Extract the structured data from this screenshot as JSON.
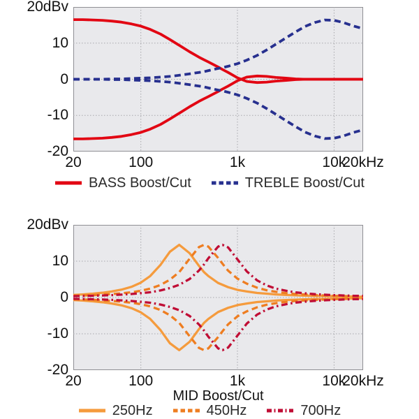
{
  "chart_data": [
    {
      "type": "line",
      "title": "",
      "xlabel": "",
      "ylabel": "dBv",
      "x_scale": "log",
      "xlim_hz": [
        20,
        20000
      ],
      "ylim": [
        -20,
        20
      ],
      "grid": true,
      "legend_position": "bottom",
      "x_hz": [
        20,
        25,
        32,
        40,
        50,
        63,
        80,
        100,
        125,
        160,
        200,
        250,
        320,
        400,
        450,
        500,
        630,
        700,
        800,
        1000,
        1250,
        1600,
        2000,
        2500,
        3200,
        4000,
        5000,
        6300,
        8000,
        10000,
        12500,
        16000,
        20000
      ],
      "x_ticks": [
        {
          "hz": 20,
          "label": "20"
        },
        {
          "hz": 100,
          "label": "100"
        },
        {
          "hz": 1000,
          "label": "1k"
        },
        {
          "hz": 10000,
          "label": "10k"
        },
        {
          "hz": 20000,
          "label": "20kHz"
        }
      ],
      "x_gridlines_hz": [
        100,
        1000,
        10000
      ],
      "y_ticks": [
        {
          "db": 20,
          "label": "20dBv"
        },
        {
          "db": 10,
          "label": "10"
        },
        {
          "db": 0,
          "label": "0"
        },
        {
          "db": -10,
          "label": "-10"
        },
        {
          "db": -20,
          "label": "-20"
        }
      ],
      "y_gridlines_db": [
        10,
        0,
        -10
      ],
      "series": [
        {
          "name": "BASS Boost/Cut",
          "color": "#e20613",
          "style": "solid",
          "mirror": true,
          "values": [
            16.5,
            16.5,
            16.4,
            16.3,
            16.1,
            15.8,
            15.3,
            14.7,
            13.8,
            12.5,
            11.0,
            9.4,
            7.6,
            6.1,
            5.4,
            4.8,
            3.4,
            2.7,
            1.9,
            0.4,
            -0.6,
            -0.9,
            -0.8,
            -0.5,
            -0.3,
            -0.1,
            0,
            0,
            0,
            0,
            0,
            0,
            0
          ]
        },
        {
          "name": "TREBLE Boost/Cut",
          "color": "#27308f",
          "style": "dashed",
          "mirror": true,
          "values": [
            0,
            0,
            0,
            0,
            0.1,
            0.1,
            0.2,
            0.3,
            0.4,
            0.6,
            0.8,
            1.1,
            1.5,
            1.9,
            2.1,
            2.4,
            3.0,
            3.2,
            3.6,
            4.3,
            5.3,
            6.6,
            8.1,
            9.7,
            11.5,
            13.1,
            14.6,
            15.7,
            16.4,
            16.3,
            15.7,
            14.7,
            14.0
          ]
        }
      ]
    },
    {
      "type": "line",
      "title": "",
      "xlabel": "MID Boost/Cut",
      "ylabel": "dBv",
      "x_scale": "log",
      "xlim_hz": [
        20,
        20000
      ],
      "ylim": [
        -20,
        20
      ],
      "grid": true,
      "legend_position": "bottom",
      "x_hz": [
        20,
        25,
        32,
        40,
        50,
        63,
        80,
        100,
        125,
        160,
        200,
        250,
        320,
        400,
        450,
        500,
        630,
        700,
        800,
        1000,
        1250,
        1600,
        2000,
        2500,
        3200,
        4000,
        5000,
        6300,
        8000,
        10000,
        12500,
        16000,
        20000
      ],
      "x_ticks": [
        {
          "hz": 20,
          "label": "20"
        },
        {
          "hz": 100,
          "label": "100"
        },
        {
          "hz": 1000,
          "label": "1k"
        },
        {
          "hz": 10000,
          "label": "10k"
        },
        {
          "hz": 20000,
          "label": "20kHz"
        }
      ],
      "x_gridlines_hz": [
        100,
        1000,
        10000
      ],
      "y_ticks": [
        {
          "db": 20,
          "label": "20dBv"
        },
        {
          "db": 10,
          "label": "10"
        },
        {
          "db": 0,
          "label": "0"
        },
        {
          "db": -10,
          "label": "-10"
        },
        {
          "db": -20,
          "label": "-20"
        }
      ],
      "y_gridlines_db": [
        10,
        0,
        -10
      ],
      "series": [
        {
          "name": "250Hz",
          "color": "#f59b3d",
          "style": "solid",
          "mirror": true,
          "values": [
            0.7,
            0.85,
            1.05,
            1.3,
            1.65,
            2.15,
            2.95,
            4.1,
            5.9,
            9.0,
            12.6,
            14.5,
            12.2,
            8.7,
            7.0,
            5.9,
            4.0,
            3.5,
            2.85,
            2.1,
            1.65,
            1.25,
            1.05,
            0.85,
            0.7,
            0.6,
            0.5,
            0.45,
            0.4,
            0.35,
            0.3,
            0.25,
            0.2
          ]
        },
        {
          "name": "450Hz",
          "color": "#ee7d21",
          "style": "dashed",
          "mirror": true,
          "values": [
            0.5,
            0.55,
            0.65,
            0.8,
            0.95,
            1.15,
            1.45,
            1.85,
            2.45,
            3.45,
            4.9,
            7.0,
            10.7,
            13.9,
            14.5,
            14.0,
            10.9,
            9.3,
            7.4,
            5.2,
            3.8,
            2.7,
            2.0,
            1.55,
            1.2,
            0.95,
            0.8,
            0.65,
            0.55,
            0.45,
            0.4,
            0.3,
            0.25
          ]
        },
        {
          "name": "700Hz",
          "color": "#c00d35",
          "style": "dashdot",
          "mirror": true,
          "values": [
            0.37,
            0.42,
            0.49,
            0.56,
            0.66,
            0.79,
            0.96,
            1.2,
            1.45,
            1.95,
            2.6,
            3.5,
            5.1,
            7.45,
            9.1,
            10.8,
            14.0,
            14.5,
            13.8,
            10.5,
            7.2,
            4.7,
            3.35,
            2.45,
            1.85,
            1.4,
            1.15,
            0.93,
            0.76,
            0.65,
            0.55,
            0.47,
            0.42
          ]
        }
      ]
    }
  ]
}
